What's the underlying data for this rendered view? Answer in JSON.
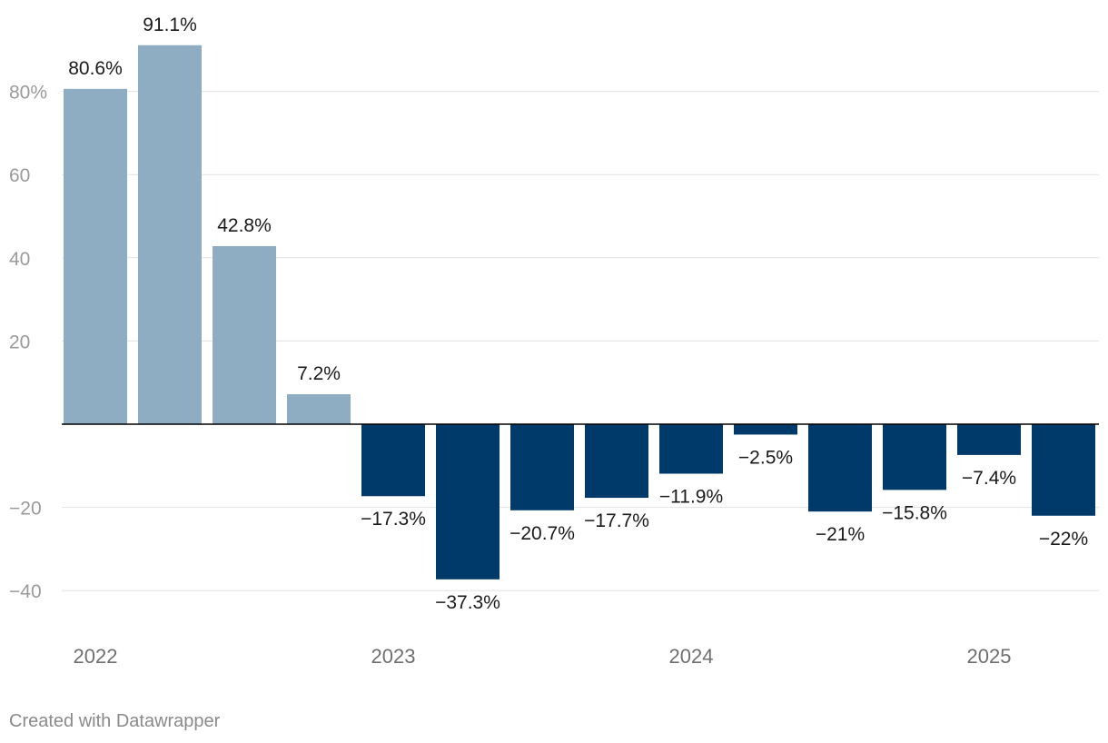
{
  "chart_data": {
    "type": "bar",
    "title": "",
    "xlabel": "",
    "ylabel": "",
    "ylim": [
      -48,
      95
    ],
    "grid": true,
    "yticks": [
      -40,
      -20,
      20,
      40,
      60,
      80
    ],
    "ytick_labels": [
      "−40",
      "−20",
      "20",
      "40",
      "60",
      "80%"
    ],
    "x_period_labels": [
      {
        "label": "2022",
        "index": 0
      },
      {
        "label": "2023",
        "index": 4
      },
      {
        "label": "2024",
        "index": 8
      },
      {
        "label": "2025",
        "index": 12
      }
    ],
    "values": [
      80.6,
      91.1,
      42.8,
      7.2,
      -17.3,
      -37.3,
      -20.7,
      -17.7,
      -11.9,
      -2.5,
      -21,
      -15.8,
      -7.4,
      -22
    ],
    "data_labels": [
      "80.6%",
      "91.1%",
      "42.8%",
      "7.2%",
      "−17.3%",
      "−37.3%",
      "−20.7%",
      "−17.7%",
      "−11.9%",
      "−2.5%",
      "−21%",
      "−15.8%",
      "−7.4%",
      "−22%"
    ],
    "colors": {
      "positive": "#8fadc2",
      "negative": "#003a6b",
      "grid": "#e2e2e2",
      "baseline": "#000000"
    }
  },
  "footer": {
    "credit": "Created with Datawrapper"
  }
}
